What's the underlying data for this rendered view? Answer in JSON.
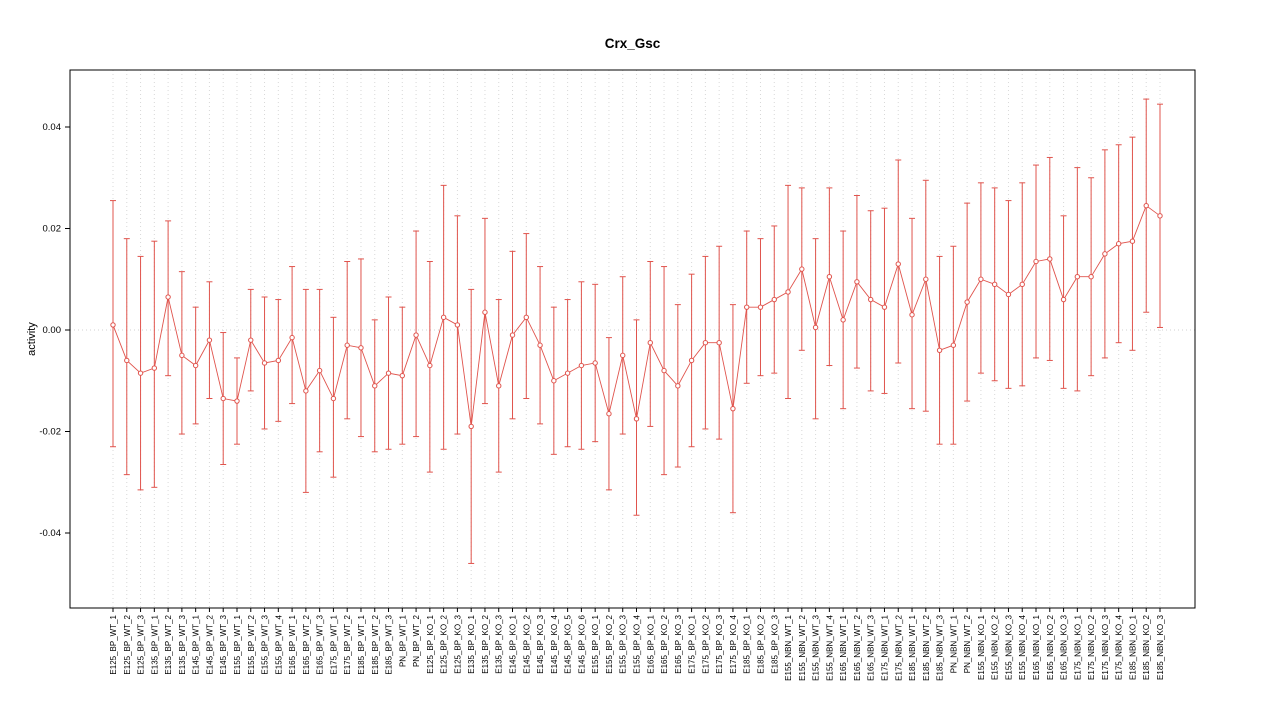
{
  "chart_data": {
    "type": "line",
    "subtype": "points_with_error_bars",
    "title": "Crx_Gsc",
    "xlabel": "",
    "ylabel": "activity",
    "ylim": [
      -0.048,
      0.046
    ],
    "yticks": [
      -0.04,
      -0.02,
      0,
      0.02,
      0.04
    ],
    "ytick_labels": [
      "-0.04",
      "-0.02",
      "0.00",
      "0.02",
      "0.04"
    ],
    "legend": "none",
    "grid": {
      "vertical_dotted_per_category": true,
      "zero_line_dotted": true
    },
    "colors": {
      "series": "#e0544d",
      "grid": "#d8d8d8",
      "zero_line": "#d0d0d0",
      "axis": "#000000",
      "point_fill": "#ffffff"
    },
    "categories": [
      "E125_BP_WT_1",
      "E125_BP_WT_2",
      "E125_BP_WT_3",
      "E135_BP_WT_1",
      "E135_BP_WT_2",
      "E135_BP_WT_3",
      "E145_BP_WT_1",
      "E145_BP_WT_2",
      "E145_BP_WT_3",
      "E155_BP_WT_1",
      "E155_BP_WT_2",
      "E155_BP_WT_3",
      "E155_BP_WT_4",
      "E165_BP_WT_1",
      "E165_BP_WT_2",
      "E165_BP_WT_3",
      "E175_BP_WT_1",
      "E175_BP_WT_2",
      "E185_BP_WT_1",
      "E185_BP_WT_2",
      "E185_BP_WT_3",
      "PN_BP_WT_1",
      "PN_BP_WT_2",
      "E125_BP_KO_1",
      "E125_BP_KO_2",
      "E125_BP_KO_3",
      "E135_BP_KO_1",
      "E135_BP_KO_2",
      "E135_BP_KO_3",
      "E145_BP_KO_1",
      "E145_BP_KO_2",
      "E145_BP_KO_3",
      "E145_BP_KO_4",
      "E145_BP_KO_5",
      "E145_BP_KO_6",
      "E155_BP_KO_1",
      "E155_BP_KO_2",
      "E155_BP_KO_3",
      "E155_BP_KO_4",
      "E165_BP_KO_1",
      "E165_BP_KO_2",
      "E165_BP_KO_3",
      "E175_BP_KO_1",
      "E175_BP_KO_2",
      "E175_BP_KO_3",
      "E175_BP_KO_4",
      "E185_BP_KO_1",
      "E185_BP_KO_2",
      "E185_BP_KO_3",
      "E155_NBN_WT_1",
      "E155_NBN_WT_2",
      "E155_NBN_WT_3",
      "E155_NBN_WT_4",
      "E165_NBN_WT_1",
      "E165_NBN_WT_2",
      "E165_NBN_WT_3",
      "E175_NBN_WT_1",
      "E175_NBN_WT_2",
      "E185_NBN_WT_1",
      "E185_NBN_WT_2",
      "E185_NBN_WT_3",
      "PN_NBN_WT_1",
      "PN_NBN_WT_2",
      "E155_NBN_KO_1",
      "E155_NBN_KO_2",
      "E155_NBN_KO_3",
      "E155_NBN_KO_4",
      "E165_NBN_KO_1",
      "E165_NBN_KO_2",
      "E165_NBN_KO_3",
      "E175_NBN_KO_1",
      "E175_NBN_KO_2",
      "E175_NBN_KO_3",
      "E175_NBN_KO_4",
      "E185_NBN_KO_1",
      "E185_NBN_KO_2",
      "E185_NBN_KO_3"
    ],
    "series": [
      {
        "name": "activity",
        "means": [
          0.001,
          -0.006,
          -0.0085,
          -0.0075,
          0.0065,
          -0.005,
          -0.007,
          -0.002,
          -0.0135,
          -0.014,
          -0.002,
          -0.0065,
          -0.006,
          -0.0015,
          -0.012,
          -0.008,
          -0.0135,
          -0.003,
          -0.0035,
          -0.011,
          -0.0085,
          -0.009,
          -0.001,
          -0.007,
          0.0025,
          0.001,
          -0.019,
          0.0035,
          -0.011,
          -0.001,
          0.0025,
          -0.003,
          -0.01,
          -0.0085,
          -0.007,
          -0.0065,
          -0.0165,
          -0.005,
          -0.0175,
          -0.0025,
          -0.008,
          -0.011,
          -0.006,
          -0.0025,
          -0.0025,
          -0.0155,
          0.0045,
          0.0045,
          0.006,
          0.0075,
          0.012,
          0.0005,
          0.0105,
          0.002,
          0.0095,
          0.006,
          0.0045,
          0.013,
          0.003,
          0.01,
          -0.004,
          -0.003,
          0.0055,
          0.01,
          0.009,
          0.007,
          0.009,
          0.0135,
          0.014,
          0.006,
          0.0105,
          0.0105,
          0.015,
          0.017,
          0.0175,
          0.0245,
          0.0225
        ],
        "lower": [
          -0.023,
          -0.0285,
          -0.0315,
          -0.031,
          -0.009,
          -0.0205,
          -0.0185,
          -0.0135,
          -0.0265,
          -0.0225,
          -0.012,
          -0.0195,
          -0.018,
          -0.0145,
          -0.032,
          -0.024,
          -0.029,
          -0.0175,
          -0.021,
          -0.024,
          -0.0235,
          -0.0225,
          -0.021,
          -0.028,
          -0.0235,
          -0.0205,
          -0.046,
          -0.0145,
          -0.028,
          -0.0175,
          -0.0135,
          -0.0185,
          -0.0245,
          -0.023,
          -0.0235,
          -0.022,
          -0.0315,
          -0.0205,
          -0.0365,
          -0.019,
          -0.0285,
          -0.027,
          -0.023,
          -0.0195,
          -0.0215,
          -0.036,
          -0.0105,
          -0.009,
          -0.0085,
          -0.0135,
          -0.004,
          -0.0175,
          -0.007,
          -0.0155,
          -0.0075,
          -0.012,
          -0.0125,
          -0.0065,
          -0.0155,
          -0.016,
          -0.0225,
          -0.0225,
          -0.014,
          -0.0085,
          -0.01,
          -0.0115,
          -0.011,
          -0.0055,
          -0.006,
          -0.0115,
          -0.012,
          -0.009,
          -0.0055,
          -0.0025,
          -0.004,
          0.0035,
          0.0005
        ],
        "upper": [
          0.0255,
          0.018,
          0.0145,
          0.0175,
          0.0215,
          0.0115,
          0.0045,
          0.0095,
          -0.0005,
          -0.0055,
          0.008,
          0.0065,
          0.006,
          0.0125,
          0.008,
          0.008,
          0.0025,
          0.0135,
          0.014,
          0.002,
          0.0065,
          0.0045,
          0.0195,
          0.0135,
          0.0285,
          0.0225,
          0.008,
          0.022,
          0.006,
          0.0155,
          0.019,
          0.0125,
          0.0045,
          0.006,
          0.0095,
          0.009,
          -0.0015,
          0.0105,
          0.002,
          0.0135,
          0.0125,
          0.005,
          0.011,
          0.0145,
          0.0165,
          0.005,
          0.0195,
          0.018,
          0.0205,
          0.0285,
          0.028,
          0.018,
          0.028,
          0.0195,
          0.0265,
          0.0235,
          0.024,
          0.0335,
          0.022,
          0.0295,
          0.0145,
          0.0165,
          0.025,
          0.029,
          0.028,
          0.0255,
          0.029,
          0.0325,
          0.034,
          0.0225,
          0.032,
          0.03,
          0.0355,
          0.0365,
          0.038,
          0.0455,
          0.0445
        ]
      }
    ]
  }
}
